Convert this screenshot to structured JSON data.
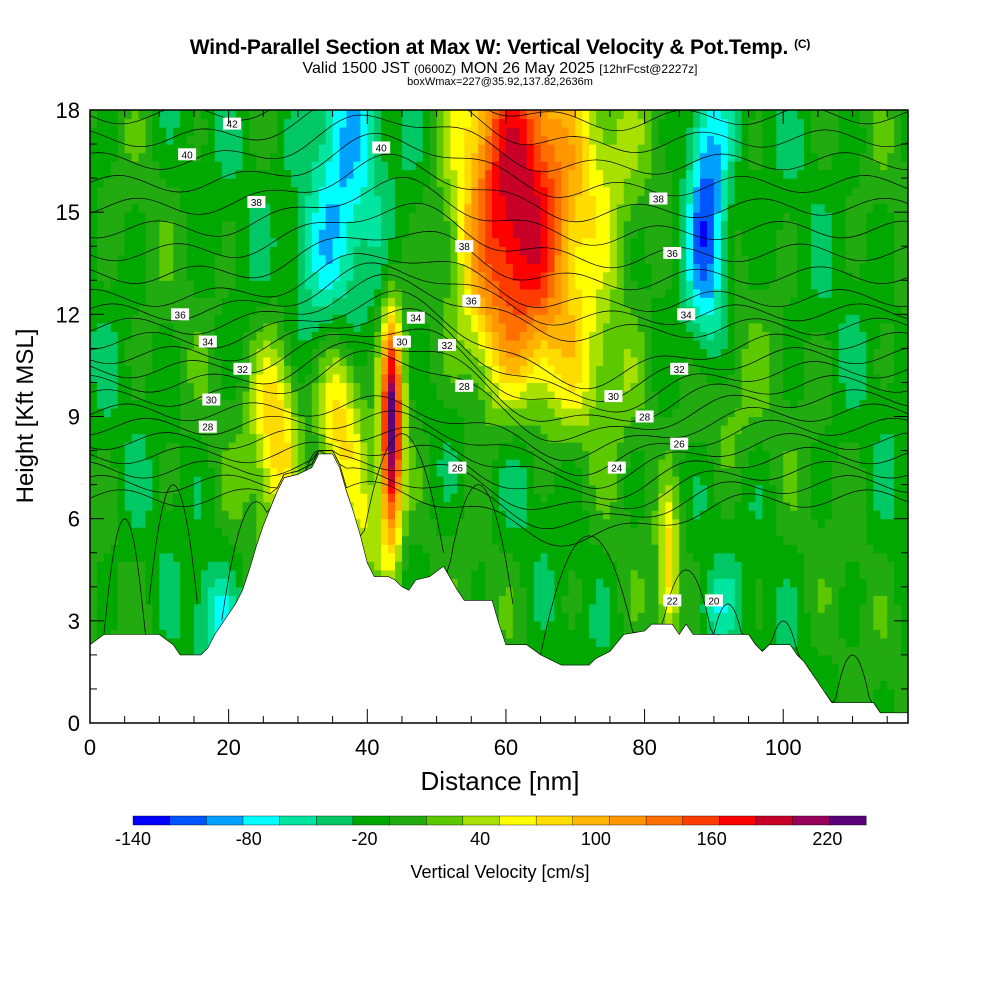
{
  "header": {
    "title": "Wind-Parallel Section at Max W: Vertical Velocity & Pot.Temp.",
    "copyright": "(C)",
    "valid_prefix": "Valid 1500 JST",
    "valid_zulu": "(0600Z)",
    "valid_date": "MON 26 May 2025",
    "forecast": "[12hrFcst@2227z]",
    "box_info": "boxWmax=227@35.92,137.82,2636m"
  },
  "chart_data": {
    "type": "heatmap",
    "xlabel": "Distance [nm]",
    "ylabel": "Height [Kft MSL]",
    "xlim": [
      0,
      118
    ],
    "ylim": [
      0,
      18
    ],
    "x_ticks": [
      0,
      20,
      40,
      60,
      80,
      100
    ],
    "y_ticks": [
      0,
      3,
      6,
      9,
      12,
      15,
      18
    ],
    "colorbar": {
      "label": "Vertical Velocity [cm/s]",
      "tick_labels": [
        "-140",
        "-80",
        "-20",
        "40",
        "100",
        "160",
        "220"
      ],
      "tick_values": [
        -140,
        -80,
        -20,
        40,
        100,
        160,
        220
      ],
      "vmin": -140,
      "vmax": 240,
      "colors": [
        "#0000ff",
        "#0055ff",
        "#00a0ff",
        "#00ffff",
        "#00e6a0",
        "#00c864",
        "#00a800",
        "#22aa11",
        "#5cc800",
        "#a8e000",
        "#ffff00",
        "#ffdc00",
        "#ffb400",
        "#ff9600",
        "#ff6e00",
        "#ff3c00",
        "#ff0000",
        "#c80028",
        "#96005a",
        "#5a0078"
      ]
    },
    "terrain": [
      [
        0,
        2.3
      ],
      [
        2,
        2.6
      ],
      [
        6,
        2.6
      ],
      [
        10,
        2.6
      ],
      [
        12,
        2.3
      ],
      [
        13,
        2.0
      ],
      [
        16,
        2.0
      ],
      [
        17,
        2.2
      ],
      [
        18,
        2.6
      ],
      [
        19,
        2.9
      ],
      [
        20,
        3.2
      ],
      [
        21,
        3.5
      ],
      [
        22,
        3.9
      ],
      [
        23,
        4.5
      ],
      [
        24,
        5.2
      ],
      [
        25,
        5.8
      ],
      [
        26,
        6.3
      ],
      [
        27,
        6.8
      ],
      [
        28,
        7.2
      ],
      [
        30,
        7.3
      ],
      [
        32,
        7.5
      ],
      [
        33,
        7.9
      ],
      [
        35,
        7.9
      ],
      [
        36,
        7.5
      ],
      [
        37,
        6.8
      ],
      [
        38,
        6.2
      ],
      [
        39,
        5.5
      ],
      [
        40,
        4.7
      ],
      [
        41,
        4.3
      ],
      [
        43,
        4.3
      ],
      [
        44,
        4.2
      ],
      [
        45,
        4.0
      ],
      [
        46,
        3.9
      ],
      [
        47,
        4.2
      ],
      [
        49,
        4.3
      ],
      [
        51,
        4.6
      ],
      [
        53,
        3.9
      ],
      [
        54,
        3.6
      ],
      [
        58,
        3.6
      ],
      [
        59,
        2.9
      ],
      [
        60,
        2.3
      ],
      [
        63,
        2.3
      ],
      [
        65,
        2.0
      ],
      [
        67,
        1.8
      ],
      [
        68,
        1.7
      ],
      [
        72,
        1.7
      ],
      [
        73,
        1.9
      ],
      [
        75,
        2.1
      ],
      [
        77,
        2.6
      ],
      [
        80,
        2.7
      ],
      [
        81,
        2.9
      ],
      [
        84,
        2.9
      ],
      [
        85,
        2.6
      ],
      [
        86,
        2.9
      ],
      [
        87,
        2.6
      ],
      [
        95,
        2.6
      ],
      [
        96,
        2.3
      ],
      [
        97,
        2.1
      ],
      [
        98,
        2.3
      ],
      [
        100,
        2.3
      ],
      [
        101,
        2.3
      ],
      [
        102,
        2.0
      ],
      [
        103,
        1.8
      ],
      [
        104,
        1.5
      ],
      [
        105,
        1.2
      ],
      [
        106,
        0.9
      ],
      [
        107,
        0.6
      ],
      [
        113,
        0.6
      ],
      [
        114,
        0.3
      ],
      [
        116,
        0.3
      ],
      [
        118,
        0.3
      ]
    ],
    "w_cells": [
      {
        "x": 63,
        "y": 15.5,
        "sx": 5.5,
        "sy": 4.5,
        "w": 150
      },
      {
        "x": 58,
        "y": 14.0,
        "sx": 5,
        "sy": 4,
        "w": 70
      },
      {
        "x": 74,
        "y": 16.0,
        "sx": 5,
        "sy": 2.5,
        "w": 55
      },
      {
        "x": 36,
        "y": 15.0,
        "sx": 4,
        "sy": 4,
        "w": -85
      },
      {
        "x": 89,
        "y": 15.0,
        "sx": 2.2,
        "sy": 3,
        "w": -115
      },
      {
        "x": 43.5,
        "y": 8.5,
        "sx": 1.1,
        "sy": 2.3,
        "w": 240
      },
      {
        "x": 36,
        "y": 9.0,
        "sx": 2.5,
        "sy": 2,
        "w": 120
      },
      {
        "x": 27,
        "y": 8.8,
        "sx": 2.5,
        "sy": 2,
        "w": 100
      },
      {
        "x": 40,
        "y": 5.5,
        "sx": 2,
        "sy": 1.5,
        "w": 60
      },
      {
        "x": 62,
        "y": 8.0,
        "sx": 4,
        "sy": 2,
        "w": -45
      },
      {
        "x": 52,
        "y": 8.5,
        "sx": 3,
        "sy": 2,
        "w": -30
      },
      {
        "x": 83.5,
        "y": 4.5,
        "sx": 1,
        "sy": 1.5,
        "w": 90
      },
      {
        "x": 18,
        "y": 3.2,
        "sx": 2,
        "sy": 1,
        "w": -50
      },
      {
        "x": 90,
        "y": 3.3,
        "sx": 2,
        "sy": 0.8,
        "w": -45
      },
      {
        "x": 90,
        "y": 9.2,
        "sx": 4,
        "sy": 1.5,
        "w": 40
      },
      {
        "x": 74,
        "y": 10.5,
        "sx": 6,
        "sy": 1.5,
        "w": 30
      }
    ],
    "w_background": -10,
    "theta_labels": [
      {
        "text": "42",
        "x": 20.5,
        "y": 17.6
      },
      {
        "text": "40",
        "x": 14,
        "y": 16.7
      },
      {
        "text": "40",
        "x": 42,
        "y": 16.9
      },
      {
        "text": "38",
        "x": 24,
        "y": 15.3
      },
      {
        "text": "38",
        "x": 82,
        "y": 15.4
      },
      {
        "text": "38",
        "x": 54,
        "y": 14.0
      },
      {
        "text": "36",
        "x": 84,
        "y": 13.8
      },
      {
        "text": "36",
        "x": 55,
        "y": 12.4
      },
      {
        "text": "36",
        "x": 13,
        "y": 12.0
      },
      {
        "text": "34",
        "x": 47,
        "y": 11.9
      },
      {
        "text": "34",
        "x": 86,
        "y": 12.0
      },
      {
        "text": "34",
        "x": 17,
        "y": 11.2
      },
      {
        "text": "32",
        "x": 51.5,
        "y": 11.1
      },
      {
        "text": "30",
        "x": 45,
        "y": 11.2
      },
      {
        "text": "32",
        "x": 22,
        "y": 10.4
      },
      {
        "text": "32",
        "x": 85,
        "y": 10.4
      },
      {
        "text": "30",
        "x": 17.5,
        "y": 9.5
      },
      {
        "text": "30",
        "x": 75.5,
        "y": 9.6
      },
      {
        "text": "28",
        "x": 54,
        "y": 9.9
      },
      {
        "text": "28",
        "x": 80,
        "y": 9.0
      },
      {
        "text": "28",
        "x": 17,
        "y": 8.7
      },
      {
        "text": "26",
        "x": 85,
        "y": 8.2
      },
      {
        "text": "26",
        "x": 53,
        "y": 7.5
      },
      {
        "text": "24",
        "x": 76,
        "y": 7.5
      },
      {
        "text": "22",
        "x": 84,
        "y": 3.6
      },
      {
        "text": "20",
        "x": 90,
        "y": 3.6
      }
    ]
  }
}
